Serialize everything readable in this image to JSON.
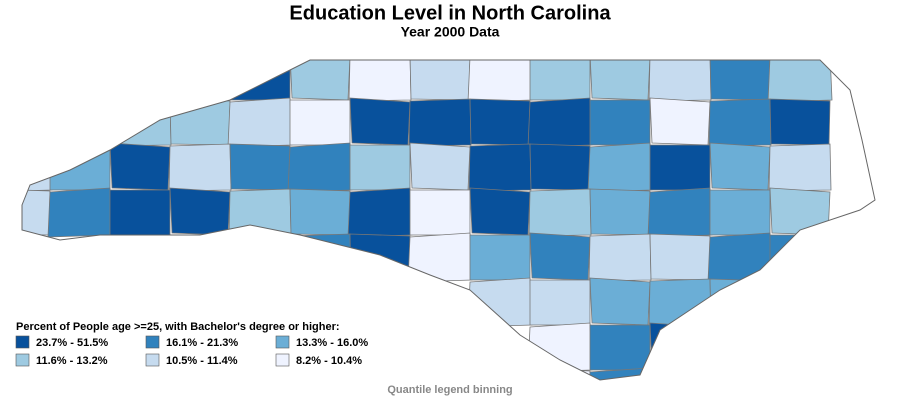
{
  "title": "Education Level in North Carolina",
  "subtitle": "Year 2000 Data",
  "legend": {
    "title": "Percent of People age >=25, with Bachelor's degree or higher:",
    "bins": [
      {
        "label": "23.7% - 51.5%",
        "color": "#08519c"
      },
      {
        "label": "16.1% - 21.3%",
        "color": "#3182bd"
      },
      {
        "label": "13.3% - 16.0%",
        "color": "#6baed6"
      },
      {
        "label": "11.6% - 13.2%",
        "color": "#9ecae1"
      },
      {
        "label": "10.5% - 11.4%",
        "color": "#c6dbef"
      },
      {
        "label": "8.2% - 10.4%",
        "color": "#eff3ff"
      }
    ]
  },
  "footnote": "Quantile legend binning"
}
